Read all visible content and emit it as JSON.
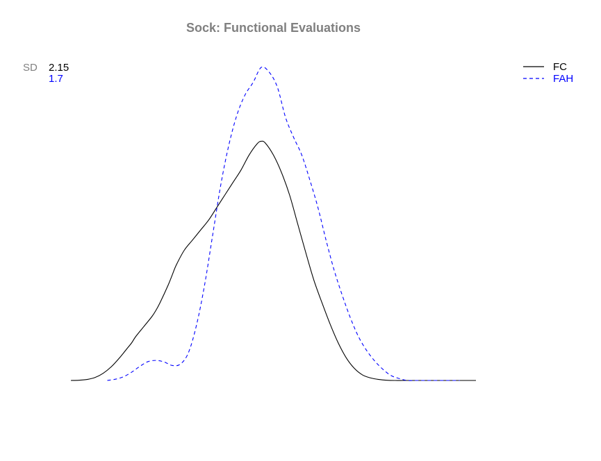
{
  "chart_data": {
    "type": "line",
    "title": "Sock: Functional Evaluations",
    "xlabel": "",
    "ylabel": "",
    "axes_visible": false,
    "grid": false,
    "legend_position": "top-right",
    "sd_label": "SD",
    "series": [
      {
        "name": "FC",
        "sd": "2.15",
        "color": "#000000",
        "dash": "solid",
        "x": [
          0,
          2,
          4,
          6,
          8,
          10,
          12,
          14,
          15,
          16,
          18,
          20,
          21,
          22,
          24,
          25,
          26,
          28,
          30,
          32,
          34,
          36,
          38,
          40,
          42,
          44,
          46,
          47,
          48,
          50,
          52,
          54,
          56,
          58,
          60,
          62,
          64,
          66,
          68,
          70,
          72,
          74,
          76,
          78,
          80,
          82,
          84,
          86,
          88,
          90,
          92,
          94,
          96,
          98,
          100
        ],
        "y": [
          0.0,
          0.1,
          0.4,
          1.2,
          2.9,
          5.5,
          9.0,
          13.0,
          15.0,
          17.5,
          21.5,
          25.5,
          28.0,
          31.0,
          38.0,
          42.0,
          46.0,
          52.0,
          56.0,
          60.0,
          64.0,
          69.0,
          74.0,
          79.0,
          84.0,
          90.0,
          94.5,
          95.5,
          94.8,
          90.0,
          83.0,
          74.0,
          62.5,
          51.0,
          40.0,
          31.0,
          22.5,
          15.0,
          9.0,
          4.8,
          2.2,
          1.0,
          0.4,
          0.1,
          0.0,
          0.0,
          0.0,
          0.0,
          0.0,
          0.0,
          0.0,
          0.0,
          0.0,
          0.0,
          0.0
        ]
      },
      {
        "name": "FAH",
        "sd": "1.7",
        "color": "#0000ff",
        "dash": "dashed",
        "x": [
          9,
          11,
          13,
          15,
          17,
          19,
          21,
          23,
          25,
          27,
          29,
          31,
          33,
          35,
          37,
          39,
          41,
          43,
          45,
          47,
          49,
          51,
          53,
          55,
          57,
          59,
          61,
          63,
          65,
          67,
          69,
          71,
          73,
          75,
          77,
          79,
          81,
          83,
          85,
          87,
          89,
          91,
          93,
          95,
          96
        ],
        "y": [
          0.0,
          0.5,
          1.5,
          3.3,
          5.6,
          7.5,
          8.0,
          7.4,
          6.0,
          6.5,
          11.0,
          22.0,
          38.0,
          58.0,
          78.0,
          94.0,
          106.0,
          114.0,
          119.0,
          125.0,
          123.0,
          117.0,
          105.0,
          97.0,
          90.0,
          80.0,
          69.0,
          56.0,
          44.0,
          34.0,
          25.0,
          17.5,
          12.0,
          7.8,
          4.5,
          2.0,
          0.8,
          0.0,
          0.0,
          0.0,
          0.0,
          0.0,
          0.0,
          0.0,
          0.0
        ]
      }
    ]
  }
}
